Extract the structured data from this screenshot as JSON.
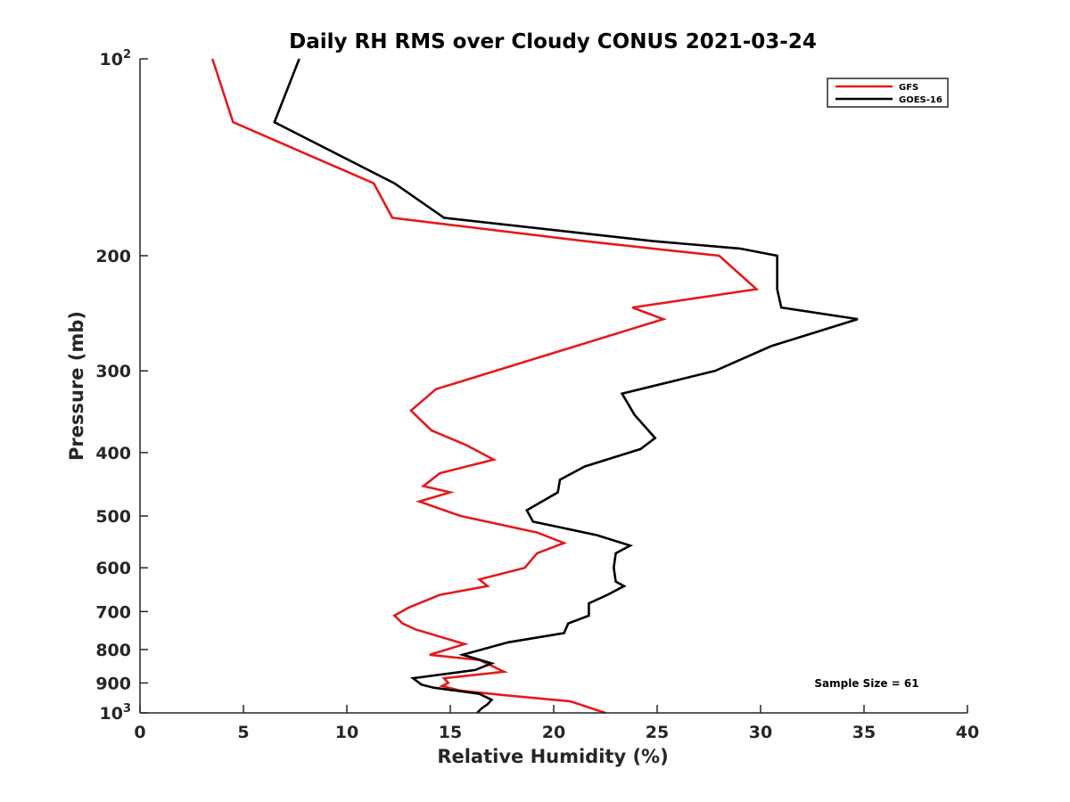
{
  "chart_data": {
    "type": "line",
    "title": "Daily RH RMS over Cloudy CONUS 2021-03-24",
    "xlabel": "Relative Humidity (%)",
    "ylabel": "Pressure (mb)",
    "xlim": [
      0,
      40
    ],
    "ylim": [
      100,
      1000
    ],
    "y_scale": "log",
    "y_reversed": true,
    "grid": false,
    "legend_position": "top-right",
    "x_ticks": [
      0,
      5,
      10,
      15,
      20,
      25,
      30,
      35,
      40
    ],
    "y_ticks": [
      {
        "value": 100,
        "base": "10",
        "exp": "2"
      },
      {
        "value": 200,
        "label": "200"
      },
      {
        "value": 300,
        "label": "300"
      },
      {
        "value": 400,
        "label": "400"
      },
      {
        "value": 500,
        "label": "500"
      },
      {
        "value": 600,
        "label": "600"
      },
      {
        "value": 700,
        "label": "700"
      },
      {
        "value": 800,
        "label": "800"
      },
      {
        "value": 900,
        "label": "900"
      },
      {
        "value": 1000,
        "base": "10",
        "exp": "3"
      }
    ],
    "annotation": "Sample Size = 61",
    "series": [
      {
        "name": "GFS",
        "color": "#e41a1c",
        "points": [
          [
            3.5,
            100
          ],
          [
            4.5,
            125
          ],
          [
            11.3,
            155
          ],
          [
            12.2,
            175
          ],
          [
            21.5,
            190
          ],
          [
            28.0,
            200
          ],
          [
            29.8,
            225
          ],
          [
            23.8,
            240
          ],
          [
            25.3,
            250
          ],
          [
            14.3,
            320
          ],
          [
            13.1,
            345
          ],
          [
            14.1,
            370
          ],
          [
            15.8,
            390
          ],
          [
            17.1,
            410
          ],
          [
            14.5,
            430
          ],
          [
            13.7,
            450
          ],
          [
            15.0,
            460
          ],
          [
            13.5,
            475
          ],
          [
            15.5,
            500
          ],
          [
            19.2,
            530
          ],
          [
            20.5,
            550
          ],
          [
            19.2,
            570
          ],
          [
            18.6,
            600
          ],
          [
            16.4,
            625
          ],
          [
            16.8,
            640
          ],
          [
            14.5,
            660
          ],
          [
            13.0,
            690
          ],
          [
            12.3,
            710
          ],
          [
            12.7,
            730
          ],
          [
            13.3,
            745
          ],
          [
            15.7,
            785
          ],
          [
            14.0,
            815
          ],
          [
            16.4,
            830
          ],
          [
            17.6,
            865
          ],
          [
            14.7,
            885
          ],
          [
            14.9,
            900
          ],
          [
            14.6,
            910
          ],
          [
            15.5,
            925
          ],
          [
            17.7,
            940
          ],
          [
            20.8,
            960
          ],
          [
            22.5,
            1000
          ]
        ]
      },
      {
        "name": "GOES-16",
        "color": "#000000",
        "points": [
          [
            7.7,
            100
          ],
          [
            6.5,
            125
          ],
          [
            12.3,
            155
          ],
          [
            14.7,
            175
          ],
          [
            24.8,
            190
          ],
          [
            29.0,
            195
          ],
          [
            30.8,
            200
          ],
          [
            30.8,
            225
          ],
          [
            31.0,
            240
          ],
          [
            34.7,
            250
          ],
          [
            30.5,
            275
          ],
          [
            27.8,
            300
          ],
          [
            23.3,
            325
          ],
          [
            23.9,
            350
          ],
          [
            24.9,
            380
          ],
          [
            24.2,
            395
          ],
          [
            21.5,
            420
          ],
          [
            20.3,
            440
          ],
          [
            20.2,
            460
          ],
          [
            18.7,
            490
          ],
          [
            19.0,
            510
          ],
          [
            22.1,
            535
          ],
          [
            23.7,
            555
          ],
          [
            23.0,
            570
          ],
          [
            22.9,
            600
          ],
          [
            23.0,
            630
          ],
          [
            23.4,
            640
          ],
          [
            22.6,
            660
          ],
          [
            21.7,
            680
          ],
          [
            21.7,
            710
          ],
          [
            20.7,
            730
          ],
          [
            20.5,
            755
          ],
          [
            17.8,
            780
          ],
          [
            15.6,
            815
          ],
          [
            17.0,
            840
          ],
          [
            16.2,
            860
          ],
          [
            13.2,
            885
          ],
          [
            13.6,
            905
          ],
          [
            14.2,
            915
          ],
          [
            16.4,
            935
          ],
          [
            17.0,
            955
          ],
          [
            16.8,
            970
          ],
          [
            16.5,
            985
          ],
          [
            16.3,
            1000
          ]
        ]
      }
    ]
  }
}
